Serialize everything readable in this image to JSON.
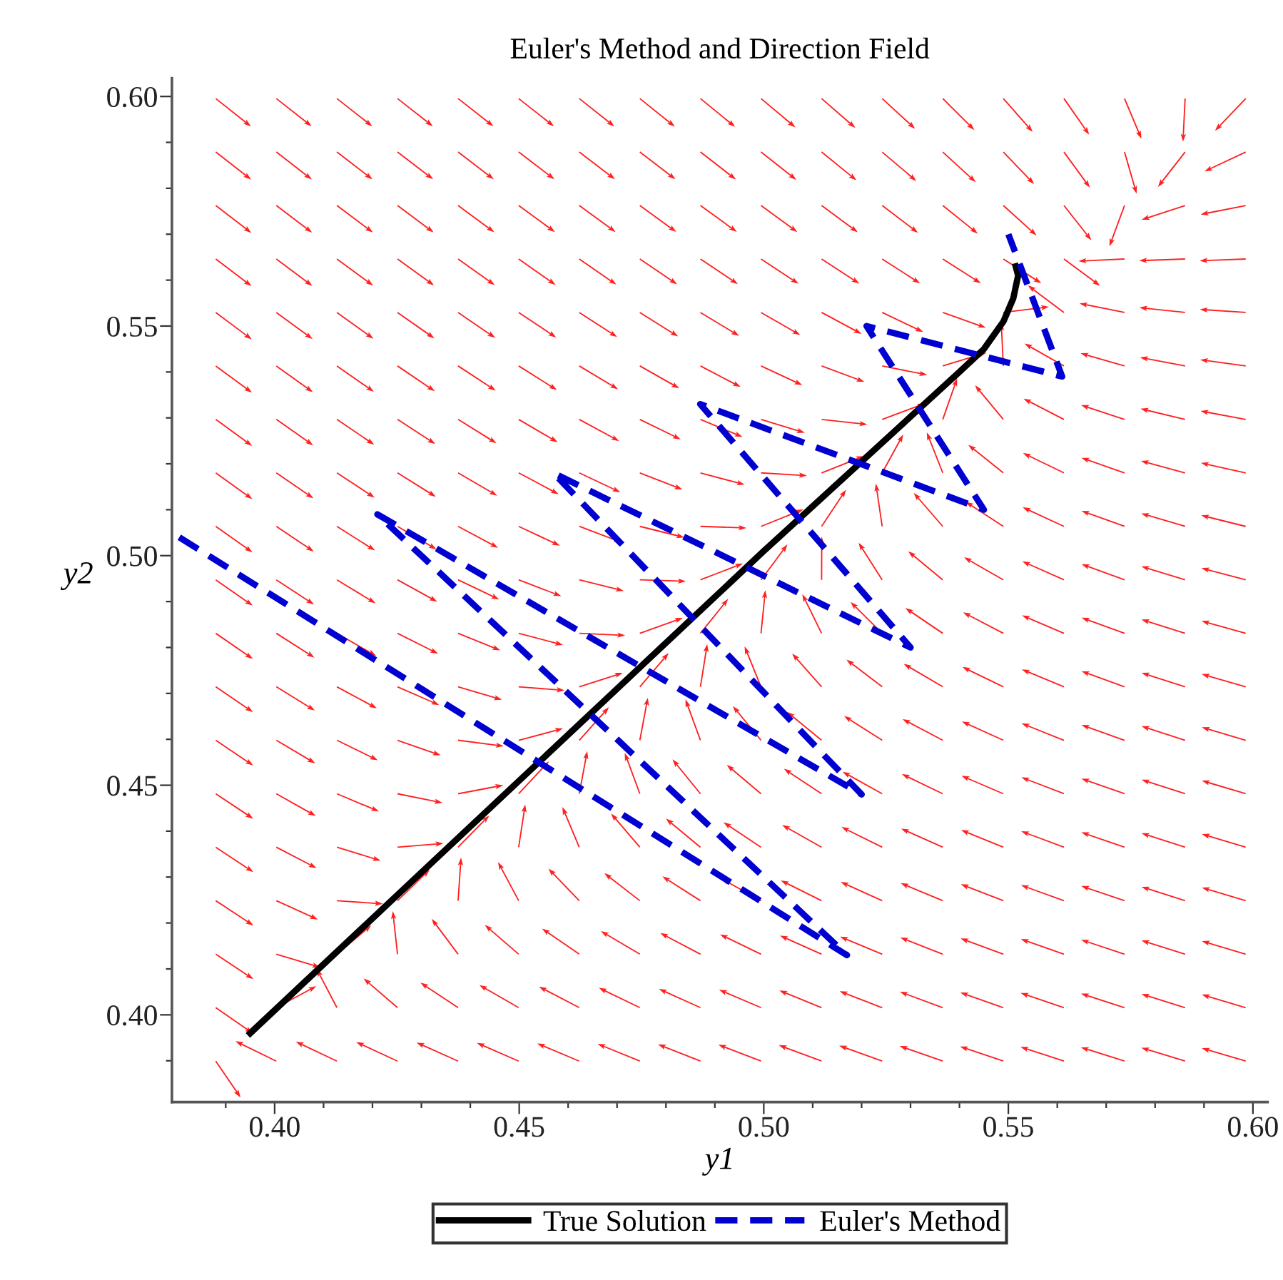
{
  "chart_data": {
    "type": "line",
    "title": "Euler's Method and Direction Field",
    "xlabel": "y1",
    "ylabel": "y2",
    "xlim": [
      0.379,
      0.603
    ],
    "ylim": [
      0.381,
      0.604
    ],
    "xticks": [
      {
        "value": 0.39,
        "label": null
      },
      {
        "value": 0.4,
        "label": "0.40"
      },
      {
        "value": 0.41,
        "label": null
      },
      {
        "value": 0.42,
        "label": null
      },
      {
        "value": 0.43,
        "label": null
      },
      {
        "value": 0.44,
        "label": null
      },
      {
        "value": 0.45,
        "label": "0.45"
      },
      {
        "value": 0.46,
        "label": null
      },
      {
        "value": 0.47,
        "label": null
      },
      {
        "value": 0.48,
        "label": null
      },
      {
        "value": 0.49,
        "label": null
      },
      {
        "value": 0.5,
        "label": "0.50"
      },
      {
        "value": 0.51,
        "label": null
      },
      {
        "value": 0.52,
        "label": null
      },
      {
        "value": 0.53,
        "label": null
      },
      {
        "value": 0.54,
        "label": null
      },
      {
        "value": 0.55,
        "label": "0.55"
      },
      {
        "value": 0.56,
        "label": null
      },
      {
        "value": 0.57,
        "label": null
      },
      {
        "value": 0.58,
        "label": null
      },
      {
        "value": 0.59,
        "label": null
      },
      {
        "value": 0.6,
        "label": "0.60"
      }
    ],
    "yticks": [
      {
        "value": 0.39,
        "label": null
      },
      {
        "value": 0.4,
        "label": "0.40"
      },
      {
        "value": 0.41,
        "label": null
      },
      {
        "value": 0.42,
        "label": null
      },
      {
        "value": 0.43,
        "label": null
      },
      {
        "value": 0.44,
        "label": null
      },
      {
        "value": 0.45,
        "label": "0.45"
      },
      {
        "value": 0.46,
        "label": null
      },
      {
        "value": 0.47,
        "label": null
      },
      {
        "value": 0.48,
        "label": null
      },
      {
        "value": 0.49,
        "label": null
      },
      {
        "value": 0.5,
        "label": "0.50"
      },
      {
        "value": 0.51,
        "label": null
      },
      {
        "value": 0.52,
        "label": null
      },
      {
        "value": 0.53,
        "label": null
      },
      {
        "value": 0.54,
        "label": null
      },
      {
        "value": 0.55,
        "label": "0.55"
      },
      {
        "value": 0.56,
        "label": null
      },
      {
        "value": 0.57,
        "label": null
      },
      {
        "value": 0.58,
        "label": null
      },
      {
        "value": 0.59,
        "label": null
      },
      {
        "value": 0.6,
        "label": "0.60"
      }
    ],
    "grid": false,
    "legend": "bottom",
    "marker": "none",
    "series": [
      {
        "name": "True Solution",
        "color": "#000000",
        "line_style": "solid",
        "x": [
          0.395,
          0.45,
          0.5,
          0.54,
          0.545,
          0.549,
          0.551,
          0.552,
          0.5515
        ],
        "values": [
          0.396,
          0.451,
          0.501,
          0.54,
          0.545,
          0.551,
          0.556,
          0.561,
          0.563
        ]
      },
      {
        "name": "Euler's Method",
        "color": "#0000d0",
        "line_style": "dashed",
        "x": [
          0.3805,
          0.517,
          0.421,
          0.52,
          0.457,
          0.53,
          0.487,
          0.545,
          0.521,
          0.561,
          0.55
        ],
        "values": [
          0.504,
          0.413,
          0.509,
          0.448,
          0.518,
          0.48,
          0.533,
          0.51,
          0.55,
          0.539,
          0.57
        ]
      }
    ]
  }
}
